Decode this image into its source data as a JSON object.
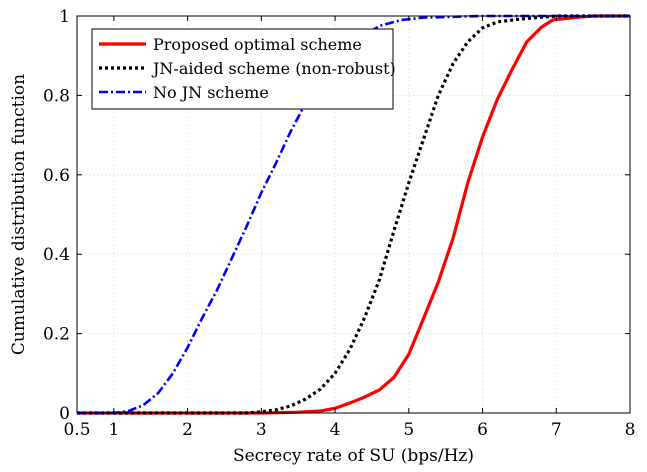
{
  "chart_data": {
    "type": "line",
    "title": "",
    "xlabel": "Secrecy rate of SU (bps/Hz)",
    "ylabel": "Cumulative distribution function",
    "xlim": [
      0.5,
      8
    ],
    "ylim": [
      0,
      1
    ],
    "xticks": [
      0.5,
      1,
      2,
      3,
      4,
      5,
      6,
      7,
      8
    ],
    "xtick_labels": [
      "0.5",
      "1",
      "2",
      "3",
      "4",
      "5",
      "6",
      "7",
      "8"
    ],
    "yticks": [
      0,
      0.2,
      0.4,
      0.6,
      0.8,
      1
    ],
    "ytick_labels": [
      "0",
      "0.2",
      "0.4",
      "0.6",
      "0.8",
      "1"
    ],
    "grid": true,
    "legend_position": "top-left",
    "series": [
      {
        "name": "Proposed optimal scheme",
        "color": "#ff0000",
        "line_style": "solid",
        "x": [
          0.5,
          1,
          2,
          3,
          3.5,
          3.8,
          4.0,
          4.2,
          4.4,
          4.6,
          4.8,
          5.0,
          5.2,
          5.4,
          5.6,
          5.8,
          6.0,
          6.2,
          6.4,
          6.6,
          6.8,
          6.95,
          7.1,
          7.3,
          7.5,
          8
        ],
        "y": [
          0,
          0,
          0,
          0,
          0.002,
          0.005,
          0.012,
          0.025,
          0.04,
          0.058,
          0.09,
          0.148,
          0.238,
          0.33,
          0.44,
          0.58,
          0.695,
          0.79,
          0.865,
          0.935,
          0.972,
          0.99,
          0.993,
          0.997,
          1,
          1
        ]
      },
      {
        "name": "JN-aided scheme (non-robust)",
        "color": "#000000",
        "line_style": "dotted",
        "x": [
          0.5,
          1,
          2,
          2.8,
          3.0,
          3.2,
          3.4,
          3.6,
          3.8,
          4.0,
          4.2,
          4.4,
          4.6,
          4.8,
          5.0,
          5.2,
          5.4,
          5.6,
          5.8,
          6.0,
          6.2,
          6.5,
          6.8,
          7.0,
          7.5,
          8
        ],
        "y": [
          0,
          0,
          0,
          0,
          0.003,
          0.008,
          0.018,
          0.035,
          0.06,
          0.1,
          0.16,
          0.24,
          0.335,
          0.46,
          0.58,
          0.69,
          0.8,
          0.88,
          0.935,
          0.97,
          0.985,
          0.992,
          0.997,
          1,
          1,
          1
        ]
      },
      {
        "name": "No JN scheme",
        "color": "#0000ff",
        "line_style": "dashdot",
        "x": [
          0.5,
          0.9,
          1.0,
          1.2,
          1.4,
          1.6,
          1.8,
          2.0,
          2.2,
          2.4,
          2.6,
          2.8,
          3.0,
          3.2,
          3.4,
          3.6,
          3.8,
          4.0,
          4.3,
          4.6,
          4.9,
          5.2,
          6.0,
          7.0,
          8
        ],
        "y": [
          0,
          0,
          0,
          0.005,
          0.02,
          0.05,
          0.1,
          0.165,
          0.24,
          0.31,
          0.39,
          0.47,
          0.555,
          0.63,
          0.71,
          0.78,
          0.84,
          0.89,
          0.94,
          0.975,
          0.99,
          0.996,
          1,
          1,
          1
        ]
      }
    ]
  }
}
